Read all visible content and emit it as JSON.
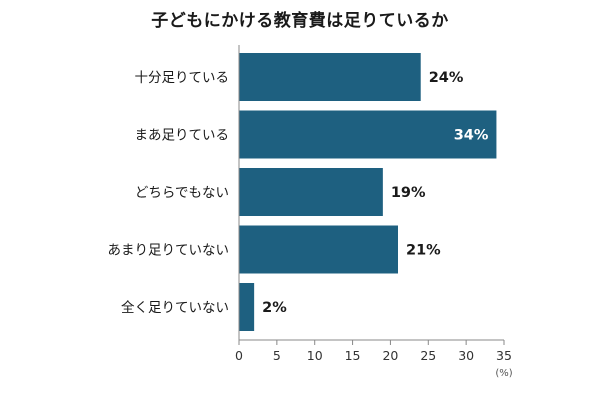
{
  "chart_data": {
    "type": "bar",
    "orientation": "horizontal",
    "title": "子どもにかける教育費は足りているか",
    "categories": [
      "十分足りている",
      "まあ足りている",
      "どちらでもない",
      "あまり足りていない",
      "全く足りていない"
    ],
    "values": [
      24,
      34,
      19,
      21,
      2
    ],
    "value_labels": [
      "24%",
      "34%",
      "19%",
      "21%",
      "2%"
    ],
    "xlim": [
      0,
      35
    ],
    "x_ticks": [
      "0",
      "5",
      "10",
      "15",
      "20",
      "25",
      "30",
      "35"
    ],
    "x_unit": "(%)",
    "grid": false,
    "bar_color": "#1e6080",
    "label_inside_color": "#ffffff",
    "label_outside_color": "#1a1a1a"
  }
}
